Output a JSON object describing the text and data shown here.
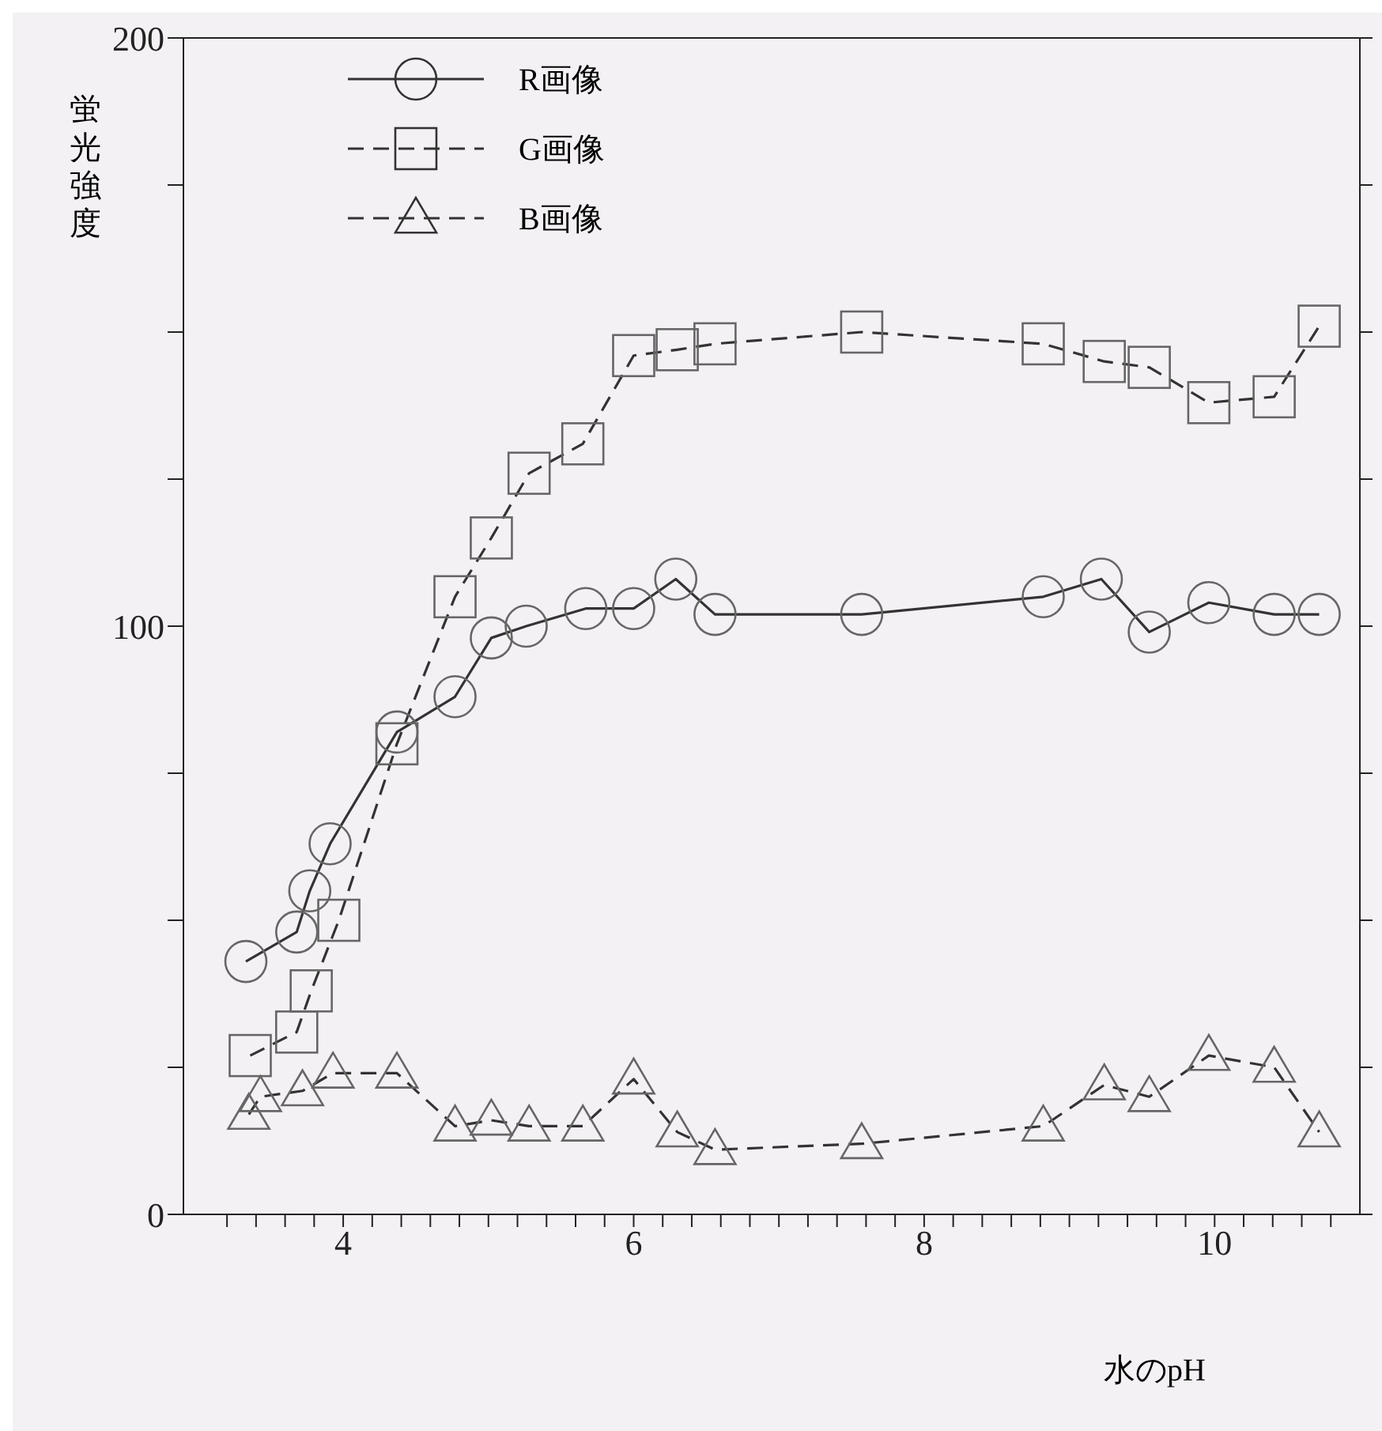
{
  "chart_data": {
    "type": "line",
    "xlabel": "水のpH",
    "ylabel": "蛍光強度",
    "xlim": [
      2.9,
      11.0
    ],
    "ylim": [
      0,
      200
    ],
    "xticks": [
      {
        "value": 3.2,
        "label": null
      },
      {
        "value": 3.4,
        "label": null
      },
      {
        "value": 3.6,
        "label": null
      },
      {
        "value": 3.8,
        "label": null
      },
      4,
      {
        "value": 4.2,
        "label": null
      },
      {
        "value": 4.4,
        "label": null
      },
      {
        "value": 4.6,
        "label": null
      },
      {
        "value": 4.8,
        "label": null
      },
      {
        "value": 5,
        "label": null
      },
      {
        "value": 5.2,
        "label": null
      },
      {
        "value": 5.4,
        "label": null
      },
      {
        "value": 5.6,
        "label": null
      },
      {
        "value": 5.8,
        "label": null
      },
      6,
      {
        "value": 6.2,
        "label": null
      },
      {
        "value": 6.4,
        "label": null
      },
      {
        "value": 6.6,
        "label": null
      },
      {
        "value": 6.8,
        "label": null
      },
      {
        "value": 7,
        "label": null
      },
      {
        "value": 7.2,
        "label": null
      },
      {
        "value": 7.4,
        "label": null
      },
      {
        "value": 7.6,
        "label": null
      },
      {
        "value": 7.8,
        "label": null
      },
      8,
      {
        "value": 8.2,
        "label": null
      },
      {
        "value": 8.4,
        "label": null
      },
      {
        "value": 8.6,
        "label": null
      },
      {
        "value": 8.8,
        "label": null
      },
      {
        "value": 9,
        "label": null
      },
      {
        "value": 9.2,
        "label": null
      },
      {
        "value": 9.4,
        "label": null
      },
      {
        "value": 9.6,
        "label": null
      },
      {
        "value": 9.8,
        "label": null
      },
      10,
      {
        "value": 10.2,
        "label": null
      },
      {
        "value": 10.4,
        "label": null
      },
      {
        "value": 10.6,
        "label": null
      },
      {
        "value": 10.8,
        "label": null
      }
    ],
    "yticks": [
      0,
      {
        "value": 25,
        "label": null
      },
      {
        "value": 50,
        "label": null
      },
      {
        "value": 75,
        "label": null
      },
      100,
      {
        "value": 125,
        "label": null
      },
      {
        "value": 150,
        "label": null
      },
      {
        "value": 175,
        "label": null
      },
      200
    ],
    "grid": false,
    "legend": "top left",
    "series": [
      {
        "name": "R画像",
        "color": "#333333",
        "marker": "circle",
        "line_style": "solid",
        "x": [
          3.33,
          3.68,
          3.77,
          3.91,
          4.37,
          4.77,
          5.02,
          5.26,
          5.67,
          6.0,
          6.29,
          6.56,
          7.57,
          8.82,
          9.22,
          9.55,
          9.96,
          10.41,
          10.72
        ],
        "values": [
          43,
          48,
          55,
          63,
          82,
          88,
          98,
          100,
          103,
          103,
          108,
          102,
          102,
          105,
          108,
          99,
          104,
          102,
          102
        ]
      },
      {
        "name": "G画像",
        "color": "#333333",
        "marker": "square",
        "line_style": "dashed",
        "x": [
          3.36,
          3.68,
          3.78,
          3.97,
          4.37,
          4.77,
          5.02,
          5.28,
          5.65,
          6.0,
          6.3,
          6.56,
          7.57,
          8.82,
          9.24,
          9.55,
          9.96,
          10.41,
          10.72
        ],
        "values": [
          27,
          31,
          38,
          50,
          80,
          105,
          115,
          126,
          131,
          146,
          147,
          148,
          150,
          148,
          145,
          144,
          138,
          139,
          151
        ]
      },
      {
        "name": "B画像",
        "color": "#333333",
        "marker": "triangle",
        "line_style": "dashed",
        "x": [
          3.35,
          3.43,
          3.72,
          3.93,
          4.37,
          4.77,
          5.02,
          5.28,
          5.65,
          6.0,
          6.3,
          6.56,
          7.57,
          8.82,
          9.24,
          9.55,
          9.96,
          10.41,
          10.72
        ],
        "values": [
          17,
          20,
          21,
          24,
          24,
          15,
          16,
          15,
          15,
          23,
          14,
          11,
          12,
          15,
          22,
          20,
          27,
          25,
          14
        ]
      }
    ]
  }
}
